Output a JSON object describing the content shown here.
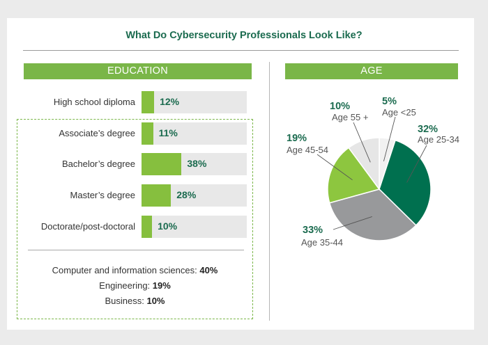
{
  "title": "What Do Cybersecurity Professionals Look Like?",
  "education": {
    "header": "EDUCATION",
    "fields": [
      {
        "label": "Computer and information sciences: ",
        "value": "40%"
      },
      {
        "label": "Engineering: ",
        "value": "19%"
      },
      {
        "label": "Business: ",
        "value": "10%"
      }
    ]
  },
  "age": {
    "header": "AGE"
  },
  "colors": {
    "green_band": "#7ab648",
    "bar_green": "#86bf3e",
    "dark_green": "#00704f",
    "light_green": "#8dc63f",
    "gray": "#98999b",
    "light_gray": "#e6e6e6",
    "very_light": "#f1f1f1",
    "text_green": "#1b6b4f"
  },
  "chart_data": [
    {
      "type": "bar",
      "title": "EDUCATION",
      "categories": [
        "High school diploma",
        "Associate’s degree",
        "Bachelor’s degree",
        "Master’s degree",
        "Doctorate/post-doctoral"
      ],
      "values": [
        12,
        11,
        38,
        28,
        10
      ],
      "value_labels": [
        "12%",
        "11%",
        "38%",
        "28%",
        "10%"
      ],
      "xlim": [
        0,
        100
      ],
      "orientation": "horizontal"
    },
    {
      "type": "pie",
      "title": "AGE",
      "categories": [
        "Age <25",
        "Age 25-34",
        "Age 35-44",
        "Age 45-54",
        "Age 55 +"
      ],
      "values": [
        5,
        32,
        33,
        19,
        10
      ],
      "value_labels": [
        "5%",
        "32%",
        "33%",
        "19%",
        "10%"
      ]
    }
  ]
}
